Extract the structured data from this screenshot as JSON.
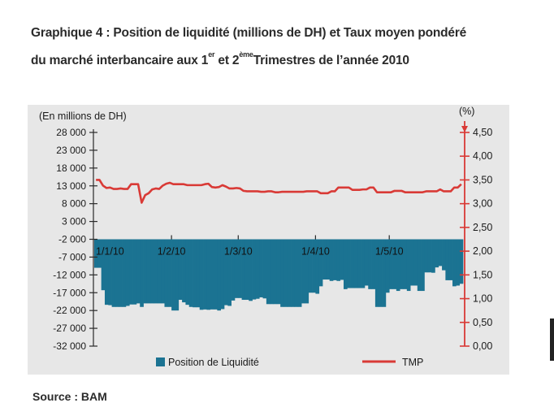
{
  "title": {
    "line1": "Graphique 4 : Position de liquidité (millions de DH) et Taux moyen pondéré",
    "line2_pre": "du marché interbancaire aux 1",
    "line2_sup1": "er",
    "line2_mid": " et 2",
    "line2_sup2": "ème",
    "line2_post": "Trimestres de l’année 2010"
  },
  "source": "Source : BAM",
  "chart_data": {
    "type": "bar",
    "left_axis_label": "(En millions de DH)",
    "right_axis_label": "(%)",
    "left_ticks": [
      "28 000",
      "23 000",
      "18 000",
      "13 000",
      "8 000",
      "3 000",
      "-2 000",
      "-7 000",
      "-12 000",
      "-17 000",
      "-22 000",
      "-27 000",
      "-32 000"
    ],
    "left_tick_values": [
      28000,
      23000,
      18000,
      13000,
      8000,
      3000,
      -2000,
      -7000,
      -12000,
      -17000,
      -22000,
      -27000,
      -32000
    ],
    "right_ticks": [
      "4,50",
      "4,00",
      "3,50",
      "3,00",
      "2,50",
      "2,00",
      "1,50",
      "1,00",
      "0,50",
      "0,00"
    ],
    "right_tick_values": [
      4.5,
      4.0,
      3.5,
      3.0,
      2.5,
      2.0,
      1.5,
      1.0,
      0.5,
      0.0
    ],
    "left_ylim": [
      -32000,
      28000
    ],
    "right_ylim": [
      0,
      4.5
    ],
    "date_labels": [
      "1/1/10",
      "1/2/10",
      "1/3/10",
      "1/4/10",
      "1/5/10"
    ],
    "date_label_positions": [
      0,
      22,
      41,
      63,
      84
    ],
    "num_days": 105,
    "legend": [
      {
        "name": "Position de Liquidité",
        "color": "#1b7392"
      },
      {
        "name": "TMP",
        "color": "#d93a36"
      }
    ],
    "colors": {
      "bars": "#1b7392",
      "line": "#d93a36",
      "axis": "#2a2a2a",
      "right_axis": "#d93a36"
    },
    "series": [
      {
        "name": "Position de Liquidité",
        "values": [
          -10000,
          -10000,
          -16300,
          -20400,
          -20500,
          -21000,
          -21000,
          -21000,
          -21000,
          -20700,
          -20300,
          -20300,
          -20000,
          -21000,
          -20000,
          -20000,
          -20000,
          -20000,
          -20000,
          -20000,
          -21000,
          -21000,
          -22000,
          -22000,
          -19000,
          -19700,
          -20400,
          -21000,
          -21100,
          -21100,
          -21800,
          -21700,
          -21800,
          -21700,
          -21700,
          -22000,
          -21600,
          -20500,
          -20700,
          -19200,
          -18500,
          -18500,
          -19000,
          -19000,
          -19300,
          -18900,
          -18700,
          -18300,
          -18600,
          -20200,
          -20200,
          -20200,
          -20200,
          -21000,
          -21000,
          -21000,
          -21000,
          -21000,
          -21000,
          -20000,
          -20000,
          -17000,
          -17000,
          -17300,
          -15200,
          -13300,
          -13300,
          -13700,
          -13500,
          -13700,
          -13400,
          -16000,
          -15700,
          -15700,
          -15700,
          -15700,
          -15700,
          -15000,
          -16000,
          -16000,
          -21000,
          -21000,
          -21000,
          -17000,
          -16000,
          -16000,
          -16500,
          -16000,
          -16000,
          -16500,
          -15000,
          -15000,
          -16500,
          -16500,
          -11300,
          -11300,
          -11400,
          -9900,
          -9500,
          -10700,
          -13500,
          -13500,
          -15200,
          -15000,
          -14500
        ]
      },
      {
        "name": "TMP",
        "values": [
          3.5,
          3.5,
          3.38,
          3.33,
          3.34,
          3.31,
          3.31,
          3.32,
          3.31,
          3.31,
          3.41,
          3.41,
          3.41,
          3.02,
          3.18,
          3.22,
          3.3,
          3.32,
          3.31,
          3.38,
          3.42,
          3.44,
          3.41,
          3.41,
          3.41,
          3.41,
          3.39,
          3.39,
          3.39,
          3.39,
          3.39,
          3.41,
          3.42,
          3.35,
          3.34,
          3.35,
          3.39,
          3.36,
          3.32,
          3.32,
          3.33,
          3.32,
          3.27,
          3.26,
          3.26,
          3.26,
          3.26,
          3.25,
          3.25,
          3.26,
          3.26,
          3.24,
          3.24,
          3.25,
          3.25,
          3.25,
          3.25,
          3.25,
          3.25,
          3.25,
          3.26,
          3.26,
          3.26,
          3.26,
          3.22,
          3.22,
          3.22,
          3.26,
          3.26,
          3.34,
          3.34,
          3.34,
          3.34,
          3.29,
          3.29,
          3.29,
          3.3,
          3.3,
          3.34,
          3.34,
          3.24,
          3.24,
          3.24,
          3.24,
          3.24,
          3.27,
          3.27,
          3.27,
          3.24,
          3.24,
          3.24,
          3.24,
          3.24,
          3.24,
          3.26,
          3.26,
          3.26,
          3.26,
          3.3,
          3.26,
          3.26,
          3.26,
          3.34,
          3.34,
          3.41
        ]
      }
    ]
  }
}
